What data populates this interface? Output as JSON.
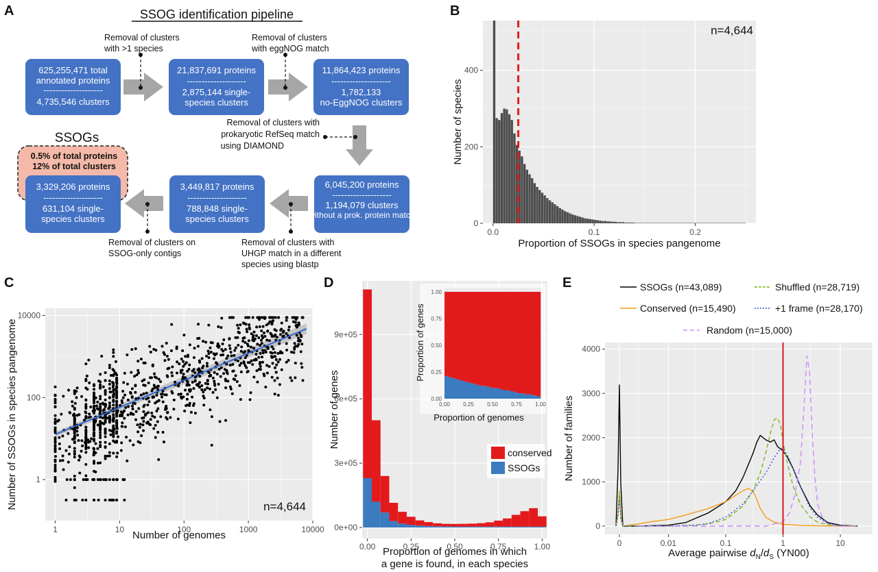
{
  "panel_labels": {
    "a": "A",
    "b": "B",
    "c": "C",
    "d": "D",
    "e": "E"
  },
  "pipeline": {
    "title": "SSOG identification pipeline",
    "ssogs_heading": "SSOGs",
    "highlight": [
      "0.5% of total proteins",
      "12% of total clusters"
    ],
    "divider": "--------------------",
    "boxes": [
      {
        "top": "625,255,471 total",
        "top2": "annotated proteins",
        "bottom": "4,735,546 clusters",
        "bottom2": ""
      },
      {
        "top": "21,837,691 proteins",
        "top2": "",
        "bottom": "2,875,144 single-",
        "bottom2": "species clusters"
      },
      {
        "top": "11,864,423 proteins",
        "top2": "",
        "bottom": "1,782,133",
        "bottom2": "no-EggNOG clusters"
      },
      {
        "top": "6,045,200 proteins",
        "top2": "",
        "bottom": "1,194,079 clusters",
        "bottom2": "without a prok. protein match"
      },
      {
        "top": "3,449,817 proteins",
        "top2": "",
        "bottom": "788,848 single-",
        "bottom2": "species clusters"
      },
      {
        "top": "3,329,206 proteins",
        "top2": "",
        "bottom": "631,104 single-",
        "bottom2": "species clusters"
      }
    ],
    "steps": [
      [
        "Removal of clusters",
        "with >1 species"
      ],
      [
        "Removal of clusters",
        "with eggNOG match"
      ],
      [
        "Removal of clusters with",
        "prokaryotic RefSeq match",
        "using DIAMOND"
      ],
      [
        "Removal of clusters with",
        "UHGP match in a different",
        "species using blastp"
      ],
      [
        "Removal of clusters on",
        "SSOG-only contigs"
      ]
    ],
    "colors": {
      "box": "#4472c4",
      "arrow": "#a6a6a6",
      "highlight": "#f4b9a8"
    }
  },
  "chart_data": [
    {
      "panel": "B",
      "type": "histogram",
      "xlabel": "Proportion of SSOGs in species pangenome",
      "ylabel": "Number of species",
      "annotation": "n=4,644",
      "xlim": [
        -0.01,
        0.26
      ],
      "ylim": [
        0,
        530
      ],
      "xticks": [
        0.0,
        0.1,
        0.2
      ],
      "xtick_labels": [
        "0.0",
        "0.1",
        "0.2"
      ],
      "yticks": [
        0,
        200,
        400
      ],
      "ytick_labels": [
        "0",
        "200",
        "400"
      ],
      "bin_width": 0.0025,
      "bins_start": 0,
      "counts": [
        530,
        275,
        270,
        288,
        300,
        298,
        285,
        270,
        235,
        205,
        190,
        175,
        155,
        140,
        128,
        118,
        105,
        95,
        87,
        80,
        73,
        66,
        60,
        55,
        50,
        45,
        40,
        36,
        32,
        29,
        26,
        23,
        21,
        19,
        17,
        15,
        13,
        12,
        11,
        10,
        9,
        8,
        7,
        6,
        6,
        5,
        5,
        4,
        4,
        3,
        3,
        3,
        2,
        2,
        2,
        2,
        1,
        1,
        1,
        1,
        1,
        1,
        1,
        1,
        1,
        1,
        1,
        1,
        1,
        1,
        1,
        1,
        1,
        1,
        1,
        1,
        1,
        1,
        1,
        1,
        1,
        1,
        1,
        1,
        1,
        1,
        1,
        1,
        1,
        1,
        1,
        1,
        1,
        1,
        1,
        1,
        1,
        1,
        1,
        1
      ],
      "vline": 0.025,
      "colors": {
        "bar": "#4d4d4d",
        "vline": "#e31a1c"
      }
    },
    {
      "panel": "C",
      "type": "scatter",
      "xscale": "log",
      "yscale": "log",
      "xlabel": "Number of genomes",
      "ylabel": "Number of SSOGs in species pangenome",
      "annotation": "n=4,644",
      "xlim": [
        0.7,
        10000
      ],
      "ylim": [
        0.1,
        15000
      ],
      "xticks": [
        1,
        10,
        100,
        1000,
        10000
      ],
      "xtick_labels": [
        "1",
        "10",
        "100",
        "1000",
        "10000"
      ],
      "yticks": [
        1,
        100,
        10000
      ],
      "ytick_labels": [
        "1",
        "100",
        "10000"
      ],
      "n_points": 1200,
      "fit": {
        "intercept_log10": 1.1,
        "slope": 0.66
      },
      "colors": {
        "point": "#000000",
        "fit": "#3366cc",
        "ci": "#b5b5b5"
      }
    },
    {
      "panel": "D",
      "type": "stacked-bar",
      "xlabel": "Proportion of genomes in which",
      "xlabel2": "a gene is found, in each species",
      "ylabel": "Number of genes",
      "xlim": [
        -0.03,
        1.03
      ],
      "ylim": [
        0,
        1150000
      ],
      "xticks": [
        0,
        0.25,
        0.5,
        0.75,
        1.0
      ],
      "xtick_labels": [
        "0.00",
        "0.25",
        "0.50",
        "0.75",
        "1.00"
      ],
      "yticks": [
        0,
        300000,
        600000,
        900000
      ],
      "ytick_labels": [
        "0e+00",
        "3e+05",
        "6e+05",
        "9e+05"
      ],
      "bin_width": 0.05,
      "categories": [
        0.0,
        0.05,
        0.1,
        0.15,
        0.2,
        0.25,
        0.3,
        0.35,
        0.4,
        0.45,
        0.5,
        0.55,
        0.6,
        0.65,
        0.7,
        0.75,
        0.8,
        0.85,
        0.9,
        0.95,
        1.0
      ],
      "series": [
        {
          "name": "SSOGs",
          "values": [
            230000,
            120000,
            70000,
            30000,
            18000,
            12000,
            9000,
            7000,
            5500,
            5000,
            4500,
            4000,
            4000,
            4000,
            4000,
            4000,
            4000,
            4000,
            4000,
            4000,
            4000
          ]
        },
        {
          "name": "conserved",
          "values": [
            880000,
            380000,
            170000,
            85000,
            55000,
            38000,
            24000,
            18000,
            14000,
            12000,
            12000,
            13000,
            14000,
            16000,
            20000,
            28000,
            38000,
            55000,
            72000,
            86000,
            48000
          ]
        }
      ],
      "legend": [
        "conserved",
        "SSOGs"
      ],
      "colors": {
        "conserved": "#e31a1c",
        "SSOGs": "#3b7bbf"
      },
      "inset": {
        "xlabel": "Proportion of genomes",
        "ylabel": "Proportion of genes",
        "xticks": [
          0,
          0.25,
          0.5,
          0.75,
          1.0
        ],
        "xtick_labels": [
          "0.00",
          "0.25",
          "0.50",
          "0.75",
          "1.00"
        ],
        "yticks": [
          0,
          0.25,
          0.5,
          0.75,
          1.0
        ],
        "ytick_labels": [
          "0.00",
          "0.25",
          "0.50",
          "0.75",
          "1.00"
        ],
        "ssog_fraction": [
          0.21,
          0.2,
          0.19,
          0.18,
          0.17,
          0.16,
          0.15,
          0.14,
          0.13,
          0.12,
          0.12,
          0.11,
          0.1,
          0.1,
          0.09,
          0.08,
          0.08,
          0.07,
          0.06,
          0.05,
          0.05,
          0.04,
          0.04,
          0.03,
          0.02
        ]
      }
    },
    {
      "panel": "E",
      "type": "density",
      "xscale": "log",
      "xlabel_main": "Average pairwise ",
      "xlabel_dn": "d",
      "xlabel_n": "N",
      "xlabel_slash": "/",
      "xlabel_ds": "d",
      "xlabel_s": "S",
      "xlabel_tail": " (YN00)",
      "ylabel": "Number of families",
      "xticks": [
        0,
        0.01,
        0.1,
        1,
        10
      ],
      "xtick_labels": [
        "0",
        "0.01",
        "0.1",
        "1",
        "10"
      ],
      "yticks": [
        0,
        1000,
        2000,
        3000,
        4000
      ],
      "ytick_labels": [
        "0",
        "1000",
        "2000",
        "3000",
        "4000"
      ],
      "ylim": [
        0,
        4150
      ],
      "vline": 1,
      "series": [
        {
          "name": "SSOGs",
          "label": "SSOGs  (n=43,089)",
          "color": "#000000",
          "dash": "",
          "zero": 3200,
          "x": [
            0.003,
            0.01,
            0.02,
            0.05,
            0.1,
            0.15,
            0.2,
            0.25,
            0.3,
            0.35,
            0.4,
            0.5,
            0.6,
            0.7,
            0.8,
            1.0,
            1.2,
            1.5,
            2,
            3,
            4,
            6,
            10,
            20
          ],
          "y": [
            0,
            20,
            80,
            300,
            550,
            800,
            1100,
            1400,
            1650,
            1900,
            2050,
            1950,
            1900,
            1950,
            1800,
            1700,
            1550,
            1300,
            900,
            450,
            250,
            80,
            20,
            0
          ]
        },
        {
          "name": "Conserved",
          "label": "Conserved (n=15,490)",
          "color": "#f39c12",
          "dash": "",
          "zero": 750,
          "x": [
            0.003,
            0.005,
            0.01,
            0.02,
            0.05,
            0.1,
            0.15,
            0.2,
            0.25,
            0.3,
            0.35,
            0.4,
            0.5,
            0.7,
            1.0,
            2,
            5,
            20
          ],
          "y": [
            50,
            100,
            150,
            250,
            400,
            550,
            700,
            800,
            850,
            780,
            600,
            400,
            200,
            90,
            40,
            15,
            5,
            0
          ]
        },
        {
          "name": "Shuffled",
          "label": "Shuffled (n=28,719)",
          "color": "#7cb518",
          "dash": "6,4",
          "zero": 800,
          "x": [
            0.003,
            0.01,
            0.03,
            0.05,
            0.1,
            0.2,
            0.3,
            0.4,
            0.5,
            0.6,
            0.7,
            0.8,
            0.9,
            1.0,
            1.2,
            1.5,
            2,
            3,
            4,
            6,
            10,
            20
          ],
          "y": [
            0,
            0,
            20,
            50,
            150,
            450,
            800,
            1200,
            1650,
            2100,
            2400,
            2450,
            2300,
            1900,
            1400,
            900,
            500,
            200,
            90,
            30,
            10,
            0
          ]
        },
        {
          "name": "+1 frame",
          "label": "+1 frame (n=28,170)",
          "color": "#2f4fd8",
          "dash": "2,3",
          "zero": 600,
          "x": [
            0.003,
            0.01,
            0.03,
            0.05,
            0.1,
            0.2,
            0.3,
            0.5,
            0.7,
            0.9,
            1.0,
            1.2,
            1.5,
            2,
            3,
            4,
            6,
            10,
            20
          ],
          "y": [
            0,
            0,
            20,
            60,
            200,
            500,
            800,
            1200,
            1550,
            1750,
            1750,
            1600,
            1300,
            900,
            400,
            200,
            60,
            15,
            0
          ]
        },
        {
          "name": "Random",
          "label": "Random (n=15,000)",
          "color": "#cc88ff",
          "dash": "8,5",
          "zero": 0,
          "x": [
            0.003,
            0.5,
            1.0,
            1.3,
            1.6,
            2.0,
            2.3,
            2.6,
            2.9,
            3.2,
            3.6,
            4,
            5,
            6,
            8,
            10,
            20
          ],
          "y": [
            0,
            0,
            100,
            300,
            700,
            1400,
            2600,
            3850,
            3500,
            2200,
            1100,
            500,
            150,
            50,
            10,
            0,
            0
          ]
        }
      ]
    }
  ]
}
